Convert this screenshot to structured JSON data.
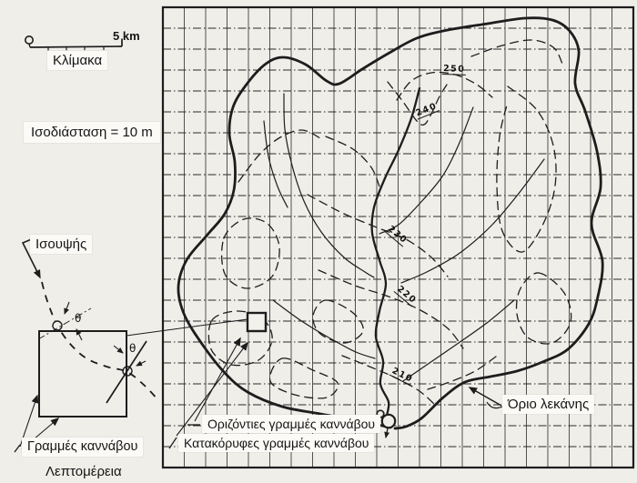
{
  "figure": {
    "kind": "Σκαρίφημα λεκάνης απορροής με κάνναβο",
    "language": "Greek"
  },
  "scalebar": {
    "label": "Κλίμακα",
    "max": "5 km"
  },
  "legend": {
    "contour_interval": "Ισοδιάσταση = 10 m",
    "contour_line": "Ισουψής",
    "grid_lines": "Γραμμές καννάβου",
    "detail": "Λεπτομέρεια",
    "angle": "θ"
  },
  "map": {
    "horizontal_grid_label": "Οριζόντιες γραμμές καννάβου",
    "vertical_grid_label": "Κατακόρυφες γραμμές καννάβου",
    "basin_boundary_label": "Όριο λεκάνης",
    "contour_values": [
      "250",
      "240",
      "230",
      "220",
      "210"
    ],
    "grid": {
      "columns": 22,
      "rows": 22
    }
  },
  "palette": {
    "paper": "#efeee9",
    "ink": "#1d1d1d",
    "label_bg": "#fbfaf7"
  }
}
